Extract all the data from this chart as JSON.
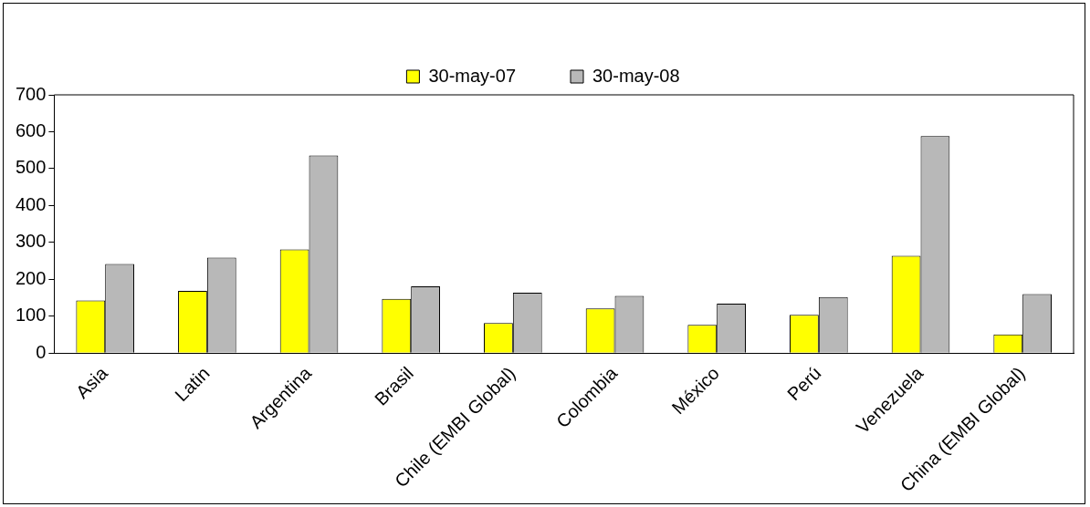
{
  "chart_data": {
    "type": "bar",
    "categories": [
      "Asia",
      "Latin",
      "Argentina",
      "Brasil",
      "Chile (EMBI Global)",
      "Colombia",
      "México",
      "Perú",
      "Venezuela",
      "China (EMBI Global)"
    ],
    "series": [
      {
        "name": "30-may-07",
        "color": "#ffff00",
        "values": [
          143,
          169,
          281,
          147,
          82,
          121,
          77,
          104,
          264,
          51
        ]
      },
      {
        "name": "30-may-08",
        "color": "#b8b8b8",
        "values": [
          242,
          259,
          536,
          181,
          164,
          155,
          134,
          152,
          588,
          160
        ]
      }
    ],
    "ylim": [
      0,
      700
    ],
    "yticks": [
      0,
      100,
      200,
      300,
      400,
      500,
      600,
      700
    ],
    "grid": false,
    "legend": "top"
  }
}
